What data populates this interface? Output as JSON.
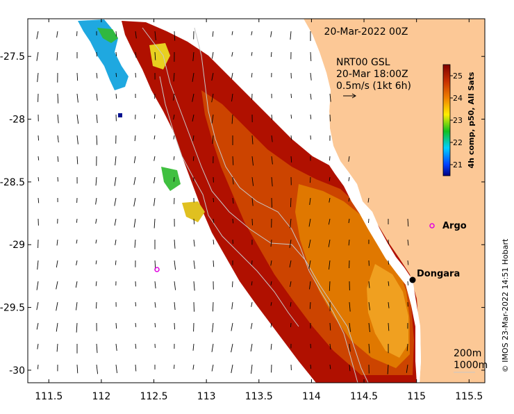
{
  "map": {
    "date_label": "20-Mar-2022 00Z",
    "current_info": {
      "line1": "NRT00 GSL",
      "line2": "20-Mar 18:00Z",
      "line3": "0.5m/s (1kt 6h)"
    },
    "x_ticks": [
      "111.5",
      "112",
      "112.5",
      "113",
      "113.5",
      "114",
      "114.5",
      "115",
      "115.5"
    ],
    "x_tick_values": [
      111.5,
      112,
      112.5,
      113,
      113.5,
      114,
      114.5,
      115,
      115.5
    ],
    "y_ticks": [
      "-27.5",
      "-28",
      "-28.5",
      "-29",
      "-29.5",
      "-30"
    ],
    "y_tick_values": [
      -27.5,
      -28,
      -28.5,
      -29,
      -29.5,
      -30
    ],
    "lon_range": [
      111.3,
      115.65
    ],
    "lat_range": [
      -27.2,
      -30.1
    ],
    "colorbar": {
      "label": "4h comp, p50, All Sats",
      "ticks": [
        "21",
        "22",
        "23",
        "24",
        "25"
      ],
      "tick_values": [
        21,
        22,
        23,
        24,
        25
      ],
      "range": [
        20.5,
        25.5
      ]
    },
    "places": [
      {
        "name": "Argo",
        "lon": 115.12,
        "lat": -28.88,
        "marker": "circle-magenta"
      },
      {
        "name": "Dongara",
        "lon": 114.93,
        "lat": -29.25,
        "marker": "dot-black"
      }
    ],
    "argo_offshore": {
      "lon": 112.52,
      "lat": -29.16
    },
    "depth_legend": {
      "line1": "200m",
      "line2": "1000m"
    },
    "credit": "© IMOS 23-Mar-2022 14:51 Hobart",
    "colors": {
      "land": "#fcc896",
      "coast_band": "#ffffff",
      "argo": "#e000e0"
    }
  }
}
